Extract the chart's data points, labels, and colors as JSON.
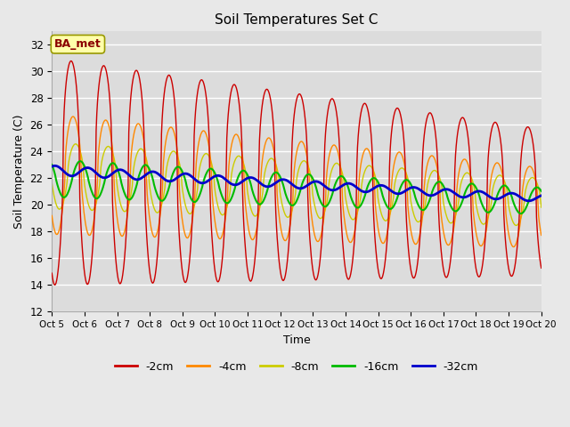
{
  "title": "Soil Temperatures Set C",
  "xlabel": "Time",
  "ylabel": "Soil Temperature (C)",
  "ylim": [
    12,
    33
  ],
  "xlim": [
    0,
    15
  ],
  "background_color": "#e8e8e8",
  "plot_bg_color": "#dcdcdc",
  "grid_color": "#ffffff",
  "series_colors": {
    "-2cm": "#cc0000",
    "-4cm": "#ff8800",
    "-8cm": "#cccc00",
    "-16cm": "#00bb00",
    "-32cm": "#0000cc"
  },
  "annotation_text": "BA_met",
  "annotation_bg": "#ffffaa",
  "annotation_border": "#999900",
  "yticks": [
    12,
    14,
    16,
    18,
    20,
    22,
    24,
    26,
    28,
    30,
    32
  ],
  "xticks": [
    0,
    1,
    2,
    3,
    4,
    5,
    6,
    7,
    8,
    9,
    10,
    11,
    12,
    13,
    14,
    15
  ],
  "x_tick_labels": [
    "Oct 5",
    "Oct 6",
    "Oct 7",
    "Oct 8",
    "Oct 9",
    "Oct 10",
    "Oct 11",
    "Oct 12",
    "Oct 13",
    "Oct 14",
    "Oct 15",
    "Oct 16",
    "Oct 17",
    "Oct 18",
    "Oct 19",
    "Oct 20"
  ],
  "days": 15,
  "pts_per_day": 48
}
